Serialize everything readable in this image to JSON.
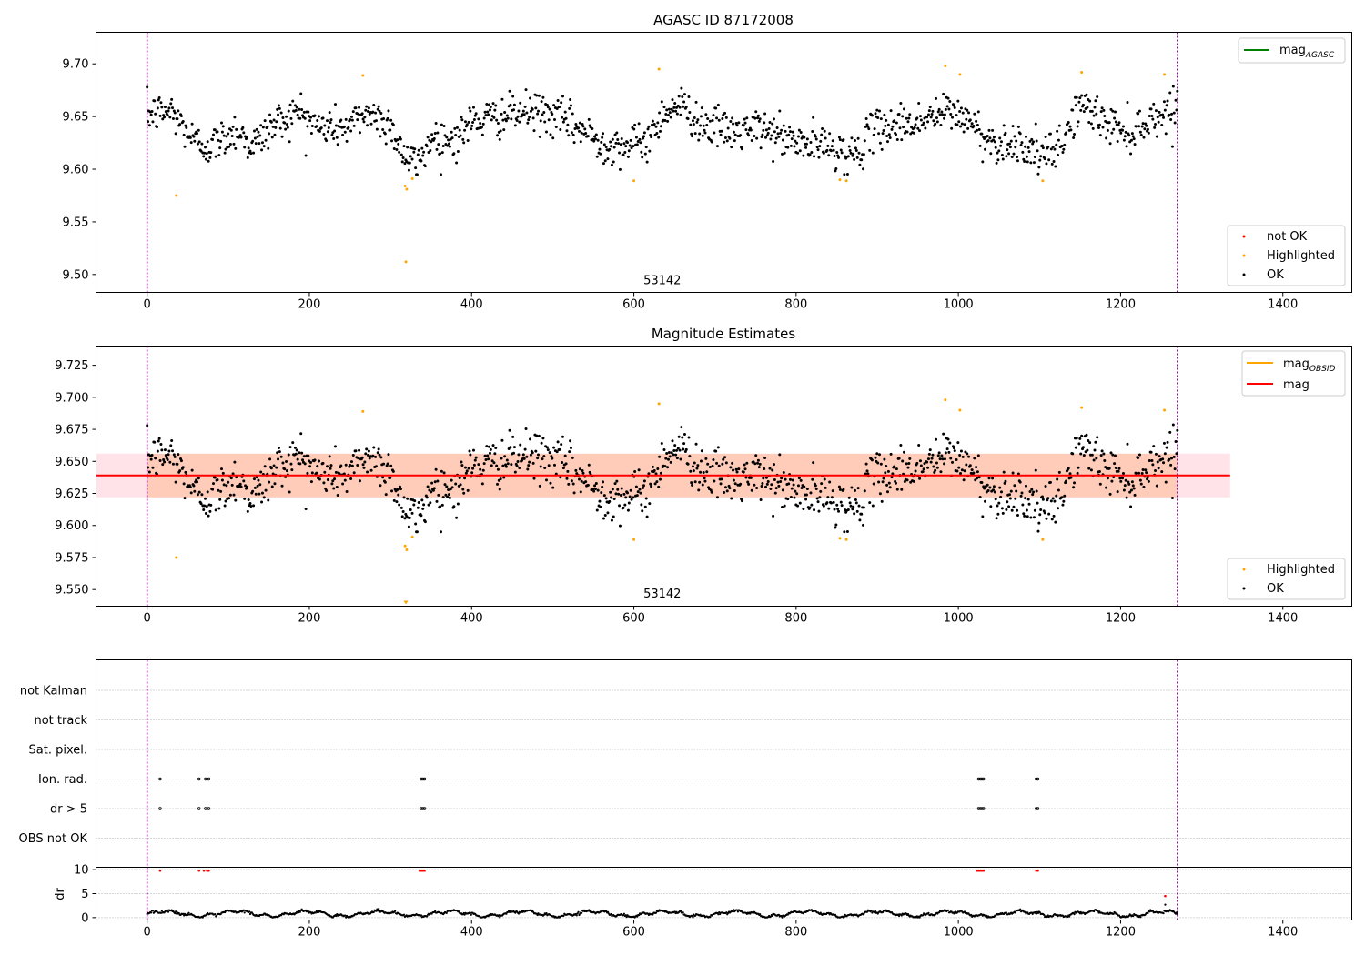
{
  "chart_data": [
    {
      "type": "scatter",
      "title": "AGASC ID 87172008",
      "xlim": [
        -63,
        1485
      ],
      "ylim": [
        9.483,
        9.73
      ],
      "xticks": [
        0,
        200,
        400,
        600,
        800,
        1000,
        1200,
        1400
      ],
      "yticks": [
        9.5,
        9.55,
        9.6,
        9.65,
        9.7
      ],
      "xlabel": "",
      "ylabel": "",
      "grid": false,
      "vlines": [
        0,
        1270
      ],
      "obsid_label": {
        "text": "53142",
        "x": 635,
        "y": 9.49
      },
      "legend_upper": {
        "placement": "upper-right",
        "entries": [
          {
            "label_base": "mag",
            "label_sub": "AGASC",
            "color": "#008000"
          }
        ]
      },
      "legend_lower": {
        "placement": "lower-right",
        "entries": [
          {
            "label": "not OK",
            "color": "#ff0000"
          },
          {
            "label": "Highlighted",
            "color": "#ffa500"
          },
          {
            "label": "OK",
            "color": "#000000"
          }
        ]
      },
      "series": [
        {
          "name": "OK",
          "color": "#000000",
          "n_points": 1260,
          "x_range": [
            0,
            1270
          ],
          "level_knots": [
            [
              0,
              9.652
            ],
            [
              30,
              9.655
            ],
            [
              60,
              9.625
            ],
            [
              80,
              9.622
            ],
            [
              110,
              9.638
            ],
            [
              130,
              9.622
            ],
            [
              160,
              9.645
            ],
            [
              190,
              9.655
            ],
            [
              210,
              9.64
            ],
            [
              250,
              9.64
            ],
            [
              270,
              9.655
            ],
            [
              300,
              9.642
            ],
            [
              320,
              9.608
            ],
            [
              335,
              9.605
            ],
            [
              350,
              9.63
            ],
            [
              380,
              9.628
            ],
            [
              400,
              9.645
            ],
            [
              450,
              9.652
            ],
            [
              480,
              9.655
            ],
            [
              520,
              9.645
            ],
            [
              560,
              9.625
            ],
            [
              600,
              9.622
            ],
            [
              620,
              9.63
            ],
            [
              640,
              9.658
            ],
            [
              660,
              9.66
            ],
            [
              680,
              9.645
            ],
            [
              720,
              9.635
            ],
            [
              760,
              9.638
            ],
            [
              800,
              9.625
            ],
            [
              850,
              9.62
            ],
            [
              870,
              9.612
            ],
            [
              900,
              9.64
            ],
            [
              950,
              9.645
            ],
            [
              990,
              9.655
            ],
            [
              1010,
              9.648
            ],
            [
              1040,
              9.625
            ],
            [
              1080,
              9.625
            ],
            [
              1100,
              9.612
            ],
            [
              1120,
              9.615
            ],
            [
              1150,
              9.662
            ],
            [
              1180,
              9.645
            ],
            [
              1210,
              9.635
            ],
            [
              1240,
              9.648
            ],
            [
              1270,
              9.66
            ]
          ],
          "scatter_sd": 0.011
        },
        {
          "name": "Highlighted",
          "color": "#ffa500",
          "points": [
            [
              36,
              9.575
            ],
            [
              266,
              9.689
            ],
            [
              318,
              9.584
            ],
            [
              320,
              9.581
            ],
            [
              319,
              9.512
            ],
            [
              327,
              9.591
            ],
            [
              631,
              9.695
            ],
            [
              600,
              9.589
            ],
            [
              984,
              9.698
            ],
            [
              1002,
              9.69
            ],
            [
              1152,
              9.692
            ],
            [
              1254,
              9.69
            ],
            [
              1104,
              9.589
            ],
            [
              854,
              9.59
            ],
            [
              862,
              9.589
            ]
          ]
        },
        {
          "name": "not OK",
          "color": "#ff0000",
          "points": []
        }
      ]
    },
    {
      "type": "scatter",
      "title": "Magnitude Estimates",
      "xlim": [
        -63,
        1485
      ],
      "ylim": [
        9.537,
        9.74
      ],
      "xticks": [
        0,
        200,
        400,
        600,
        800,
        1000,
        1200,
        1400
      ],
      "yticks": [
        9.55,
        9.575,
        9.6,
        9.625,
        9.65,
        9.675,
        9.7,
        9.725
      ],
      "xlabel": "",
      "ylabel": "",
      "grid": false,
      "vlines": [
        0,
        1270
      ],
      "obsid_label": {
        "text": "53142",
        "x": 635,
        "y": 9.543
      },
      "mag_line": {
        "value": 9.639,
        "color": "#ff0000",
        "x_range": [
          -63,
          1335
        ]
      },
      "mag_band": {
        "low": 9.622,
        "high": 9.656,
        "color": "#ffc0cb",
        "x_range": [
          -63,
          1335
        ]
      },
      "obsid_band": {
        "low": 9.622,
        "high": 9.656,
        "color": "#ffa060",
        "x_range": [
          0,
          1270
        ]
      },
      "legend_upper": {
        "placement": "upper-right",
        "entries": [
          {
            "label_base": "mag",
            "label_sub": "OBSID",
            "color": "#ffa500"
          },
          {
            "label_base": "mag",
            "label_sub": "",
            "color": "#ff0000"
          }
        ]
      },
      "legend_lower": {
        "placement": "lower-right",
        "entries": [
          {
            "label": "Highlighted",
            "color": "#ffa500"
          },
          {
            "label": "OK",
            "color": "#000000"
          }
        ]
      }
    },
    {
      "type": "scatter",
      "title": "",
      "xlim": [
        -63,
        1485
      ],
      "xticks": [
        0,
        200,
        400,
        600,
        800,
        1000,
        1200,
        1400
      ],
      "flag_rows": [
        "not Kalman",
        "not track",
        "Sat. pixel.",
        "Ion. rad.",
        "dr > 5",
        "OBS not OK"
      ],
      "flag_events": [
        {
          "row": "Ion. rad.",
          "x": [
            16,
            64,
            72,
            76,
            338,
            340,
            342,
            1025,
            1027,
            1029,
            1031,
            1096,
            1098
          ]
        },
        {
          "row": "dr > 5",
          "x": [
            16,
            64,
            72,
            76,
            338,
            340,
            342,
            1025,
            1027,
            1029,
            1031,
            1096,
            1098
          ]
        }
      ],
      "dr_panel": {
        "ylabel": "dr",
        "ylim": [
          -0.5,
          10.5
        ],
        "yticks": [
          0,
          5,
          10
        ],
        "grid_y": [
          0,
          5,
          10
        ],
        "red_points": [
          [
            16,
            9.8
          ],
          [
            64,
            9.8
          ],
          [
            70,
            9.8
          ],
          [
            74,
            9.8
          ],
          [
            76,
            9.8
          ],
          [
            336,
            9.8
          ],
          [
            338,
            9.8
          ],
          [
            340,
            9.8
          ],
          [
            342,
            9.8
          ],
          [
            1023,
            9.8
          ],
          [
            1025,
            9.8
          ],
          [
            1027,
            9.8
          ],
          [
            1029,
            9.8
          ],
          [
            1031,
            9.8
          ],
          [
            1096,
            9.8
          ],
          [
            1098,
            9.8
          ],
          [
            1255,
            4.5
          ]
        ],
        "black_level": 0.8
      },
      "vlines": [
        0,
        1270
      ]
    }
  ]
}
